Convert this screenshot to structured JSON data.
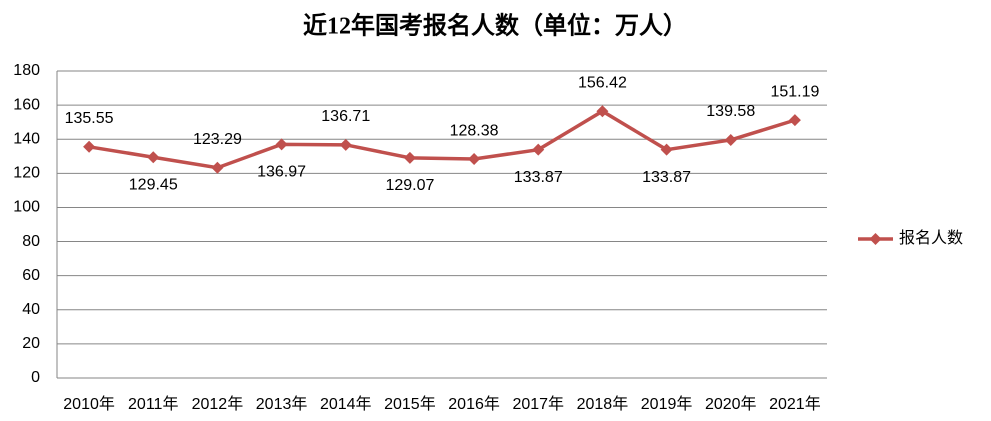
{
  "chart_data": {
    "type": "line",
    "title": "近12年国考报名人数（单位：万人）",
    "categories": [
      "2010年",
      "2011年",
      "2012年",
      "2013年",
      "2014年",
      "2015年",
      "2016年",
      "2017年",
      "2018年",
      "2019年",
      "2020年",
      "2021年"
    ],
    "series": [
      {
        "name": "报名人数",
        "color": "#c0504d",
        "values": [
          135.55,
          129.45,
          123.29,
          136.97,
          136.71,
          129.07,
          128.38,
          133.87,
          156.42,
          133.87,
          139.58,
          151.19
        ]
      }
    ],
    "ylim": [
      0,
      180
    ],
    "yticks": [
      0,
      20,
      40,
      60,
      80,
      100,
      120,
      140,
      160,
      180
    ],
    "grid": true,
    "legend": "right"
  }
}
